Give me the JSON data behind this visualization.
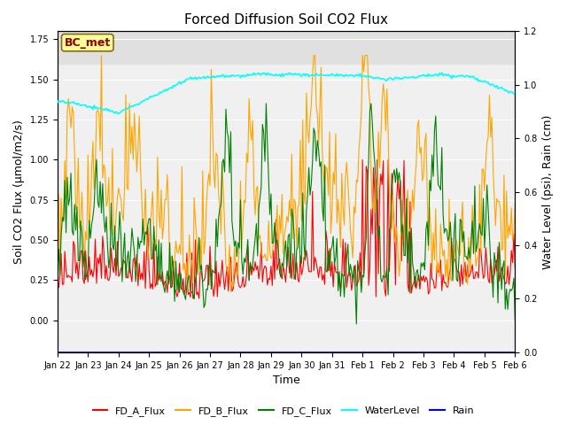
{
  "title": "Forced Diffusion Soil CO2 Flux",
  "xlabel": "Time",
  "ylabel_left": "Soil CO2 Flux (μmol/m2/s)",
  "ylabel_right": "Water Level (psi), Rain (cm)",
  "ylim_left": [
    -0.2,
    1.8
  ],
  "ylim_right": [
    0.0,
    1.2
  ],
  "xlim": [
    0,
    375
  ],
  "shade_above": 1.6,
  "shade_color": "#e0e0e0",
  "background_color": "#f0f0f0",
  "annotation_text": "BC_met",
  "annotation_color": "#8B0000",
  "annotation_bg": "#FFFF99",
  "xtick_labels": [
    "Jan 22",
    "Jan 23",
    "Jan 24",
    "Jan 25",
    "Jan 26",
    "Jan 27",
    "Jan 28",
    "Jan 29",
    "Jan 30",
    "Jan 31",
    "Feb 1",
    "Feb 2",
    "Feb 3",
    "Feb 4",
    "Feb 5",
    "Feb 6"
  ],
  "xtick_positions": [
    0,
    25,
    50,
    75,
    100,
    125,
    150,
    175,
    200,
    225,
    250,
    275,
    300,
    325,
    350,
    375
  ],
  "legend_entries": [
    "FD_A_Flux",
    "FD_B_Flux",
    "FD_C_Flux",
    "WaterLevel",
    "Rain"
  ],
  "line_colors": [
    "red",
    "orange",
    "green",
    "cyan",
    "blue"
  ],
  "line_widths": [
    0.8,
    0.8,
    0.8,
    1.2,
    1.2
  ],
  "title_fontsize": 11,
  "axis_fontsize": 9,
  "tick_fontsize": 7,
  "legend_fontsize": 8
}
